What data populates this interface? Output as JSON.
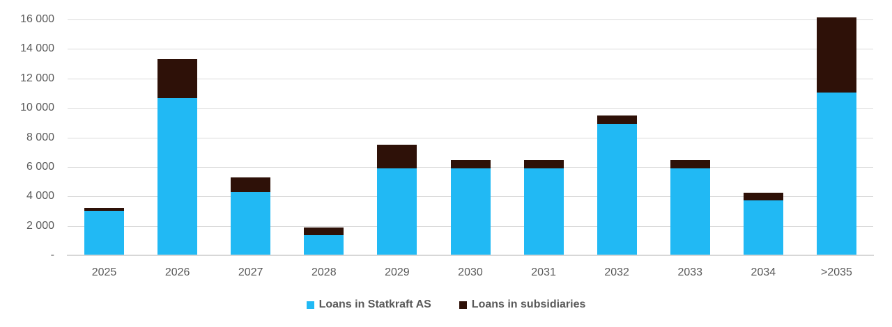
{
  "chart_data": {
    "type": "bar",
    "stacked": true,
    "orientation": "vertical",
    "categories": [
      "2025",
      "2026",
      "2027",
      "2028",
      "2029",
      "2030",
      "2031",
      "2032",
      "2033",
      "2034",
      ">2035"
    ],
    "series": [
      {
        "name": "Loans in Statkraft AS",
        "color": "#21b9f4",
        "values": [
          3000,
          10650,
          4300,
          1350,
          5900,
          5900,
          5900,
          8900,
          5900,
          3750,
          11050
        ]
      },
      {
        "name": "Loans in subsidiaries",
        "color": "#2e1108",
        "values": [
          200,
          2650,
          1000,
          550,
          1600,
          550,
          550,
          600,
          550,
          500,
          5100
        ]
      }
    ],
    "title": "",
    "xlabel": "",
    "ylabel": "",
    "ylim": [
      0,
      16000
    ],
    "ytick_interval": 2000,
    "ytick_labels": [
      "-",
      "2 000",
      "4 000",
      "6 000",
      "8 000",
      "10 000",
      "12 000",
      "14 000",
      "16 000"
    ],
    "grid": true,
    "legend_position": "bottom",
    "style": {
      "grid_color": "#d9d9d9",
      "axis_line_color": "#d7d7d7",
      "tick_text_color": "#595959",
      "legend_text_color": "#595959"
    }
  }
}
